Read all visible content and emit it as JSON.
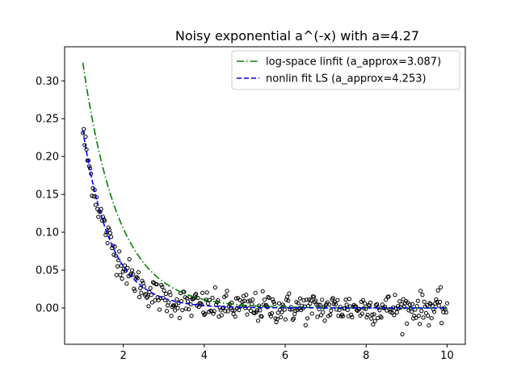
{
  "chart_data": {
    "type": "scatter",
    "title": "Noisy exponential a^(-x) with a=4.27",
    "xlabel": "",
    "ylabel": "",
    "xlim": [
      0.55,
      10.45
    ],
    "ylim": [
      -0.048,
      0.345
    ],
    "x_ticks": [
      2,
      4,
      6,
      8,
      10
    ],
    "y_ticks": [
      0.0,
      0.05,
      0.1,
      0.15,
      0.2,
      0.25,
      0.3
    ],
    "x_tick_labels": [
      "2",
      "4",
      "6",
      "8",
      "10"
    ],
    "y_tick_labels": [
      "0.00",
      "0.05",
      "0.10",
      "0.15",
      "0.20",
      "0.25",
      "0.30"
    ],
    "grid": false,
    "legend": "top-right",
    "true_a": 4.27,
    "x_range": [
      1,
      10
    ],
    "series": [
      {
        "name": "log-space linfit (a_approx=3.087)",
        "kind": "line",
        "a": 3.087,
        "color": "#008000",
        "style": "dashdot"
      },
      {
        "name": "nonlin fit LS (a_approx=4.253)",
        "kind": "line",
        "a": 4.253,
        "color": "#0000ff",
        "style": "dashed"
      }
    ],
    "scatter_style": {
      "marker": "open-circle",
      "edgecolor": "#000000",
      "count": 400
    }
  }
}
